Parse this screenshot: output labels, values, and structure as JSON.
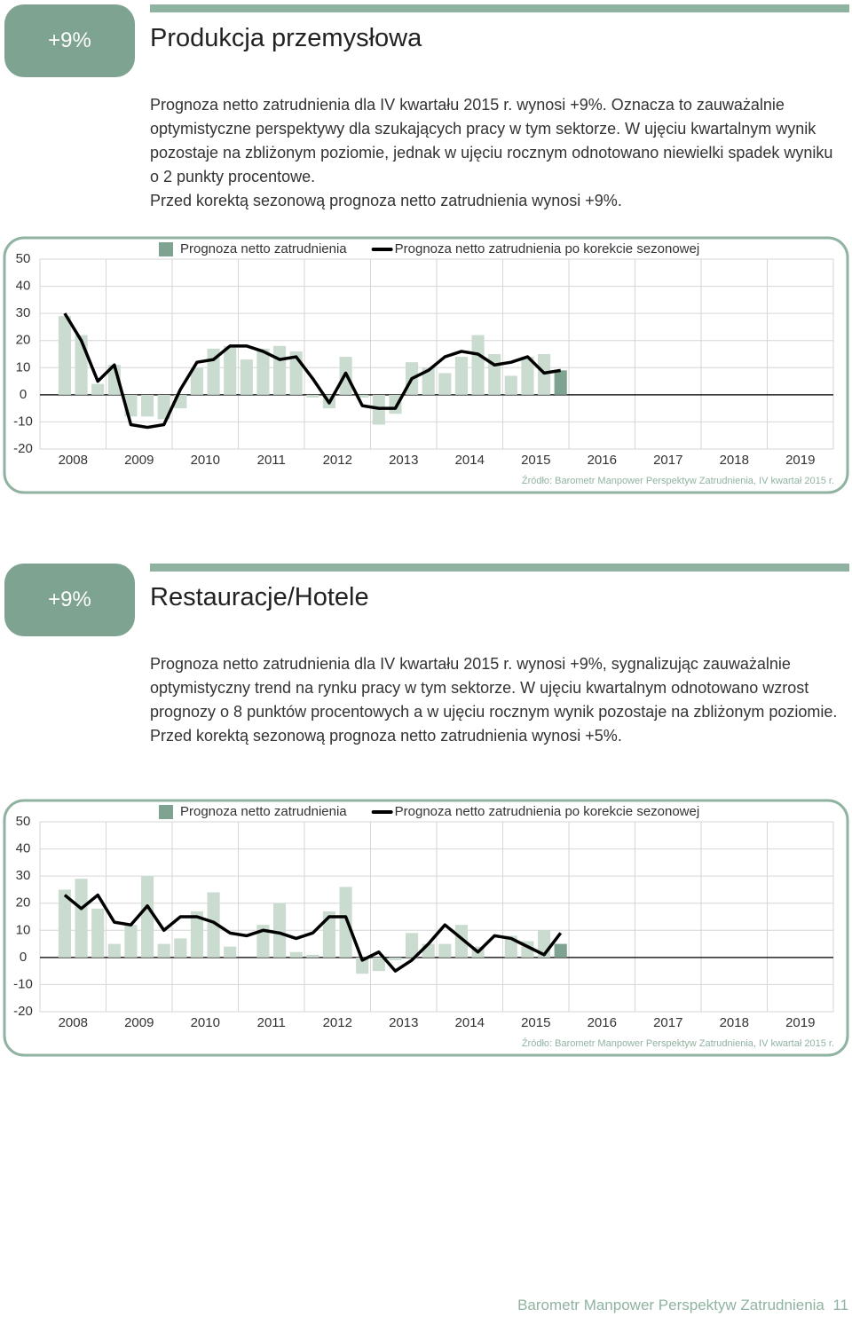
{
  "sections": [
    {
      "badge": "+9%",
      "title": "Produkcja przemysłowa",
      "paragraphs": [
        "Prognoza netto zatrudnienia dla IV kwartału 2015 r. wynosi +9%. Oznacza to zauważalnie optymistyczne perspektywy dla szukających pracy w tym sektorze. W ujęciu kwartalnym wynik pozostaje na zbliżonym poziomie, jednak w ujęciu rocznym odnotowano niewielki spadek wyniku o 2 punkty procentowe.",
        "Przed korektą sezonową prognoza netto zatrudnienia wynosi +9%."
      ]
    },
    {
      "badge": "+9%",
      "title": "Restauracje/Hotele",
      "paragraphs": [
        "Prognoza netto zatrudnienia dla IV kwartału 2015 r. wynosi +9%, sygnalizując zauważalnie optymistyczny trend na rynku pracy w tym sektorze. W ujęciu kwartalnym odnotowano wzrost prognozy o 8 punktów procentowych a w ujęciu rocznym wynik pozostaje na zbliżonym poziomie.",
        "Przed korektą sezonową prognoza netto zatrudnienia wynosi +5%."
      ]
    }
  ],
  "chart_data": [
    {
      "type": "bar",
      "source": "Źródło: Barometr Manpower Perspektyw Zatrudnienia, IV kwartał 2015 r.",
      "x": [
        2007.875,
        2008.125,
        2008.375,
        2008.625,
        2008.875,
        2009.125,
        2009.375,
        2009.625,
        2009.875,
        2010.125,
        2010.375,
        2010.625,
        2010.875,
        2011.125,
        2011.375,
        2011.625,
        2011.875,
        2012.125,
        2012.375,
        2012.625,
        2012.875,
        2013.125,
        2013.375,
        2013.625,
        2013.875,
        2014.125,
        2014.375,
        2014.625,
        2014.875,
        2015.125,
        2015.375
      ],
      "xlim": [
        2007.5,
        2019.5
      ],
      "xticks": [
        2008,
        2009,
        2010,
        2011,
        2012,
        2013,
        2014,
        2015,
        2016,
        2017,
        2018,
        2019
      ],
      "ylim": [
        -20,
        50
      ],
      "yticks": [
        50,
        40,
        30,
        20,
        10,
        0,
        -10,
        -20
      ],
      "grid": true,
      "series": [
        {
          "name": "Prognoza netto zatrudnienia",
          "type": "bar",
          "color": "#cadccf",
          "highlight_color": "#7ea390",
          "values": [
            29,
            22,
            4,
            11,
            -8,
            -8,
            -9,
            -5,
            10,
            17,
            18,
            13,
            17,
            18,
            16,
            -1,
            -5,
            14,
            -1,
            -11,
            -7,
            12,
            10,
            8,
            14,
            22,
            15,
            7,
            14,
            15,
            9
          ]
        },
        {
          "name": "Prognoza netto zatrudnienia po korekcie sezonowej",
          "type": "line",
          "color": "#000000",
          "values": [
            30,
            20,
            5,
            11,
            -11,
            -12,
            -11,
            2,
            12,
            13,
            18,
            18,
            16,
            13,
            14,
            6,
            -3,
            8,
            -4,
            -5,
            -5,
            6,
            9,
            14,
            16,
            15,
            11,
            12,
            14,
            8,
            9
          ]
        }
      ]
    },
    {
      "type": "bar",
      "source": "Źródło: Barometr Manpower Perspektyw Zatrudnienia, IV kwartał 2015 r.",
      "x": [
        2007.875,
        2008.125,
        2008.375,
        2008.625,
        2008.875,
        2009.125,
        2009.375,
        2009.625,
        2009.875,
        2010.125,
        2010.375,
        2010.625,
        2010.875,
        2011.125,
        2011.375,
        2011.625,
        2011.875,
        2012.125,
        2012.375,
        2012.625,
        2012.875,
        2013.125,
        2013.375,
        2013.625,
        2013.875,
        2014.125,
        2014.375,
        2014.625,
        2014.875,
        2015.125,
        2015.375
      ],
      "xlim": [
        2007.5,
        2019.5
      ],
      "xticks": [
        2008,
        2009,
        2010,
        2011,
        2012,
        2013,
        2014,
        2015,
        2016,
        2017,
        2018,
        2019
      ],
      "ylim": [
        -20,
        50
      ],
      "yticks": [
        50,
        40,
        30,
        20,
        10,
        0,
        -10,
        -20
      ],
      "grid": true,
      "series": [
        {
          "name": "Prognoza netto zatrudnienia",
          "type": "bar",
          "color": "#cadccf",
          "highlight_color": "#7ea390",
          "values": [
            25,
            29,
            18,
            5,
            12,
            30,
            5,
            7,
            17,
            24,
            4,
            0,
            12,
            20,
            2,
            1,
            17,
            26,
            -6,
            -5,
            -1,
            9,
            5,
            5,
            12,
            4,
            0,
            8,
            6,
            10,
            5
          ]
        },
        {
          "name": "Prognoza netto zatrudnienia po korekcie sezonowej",
          "type": "line",
          "color": "#000000",
          "values": [
            23,
            18,
            23,
            13,
            12,
            19,
            10,
            15,
            15,
            13,
            9,
            8,
            10,
            9,
            7,
            9,
            15,
            15,
            -1,
            2,
            -5,
            -1,
            5,
            12,
            7,
            2,
            8,
            7,
            4,
            1,
            9
          ]
        }
      ]
    }
  ],
  "footer": {
    "text": "Barometr Manpower Perspektyw Zatrudnienia",
    "page": "11"
  }
}
